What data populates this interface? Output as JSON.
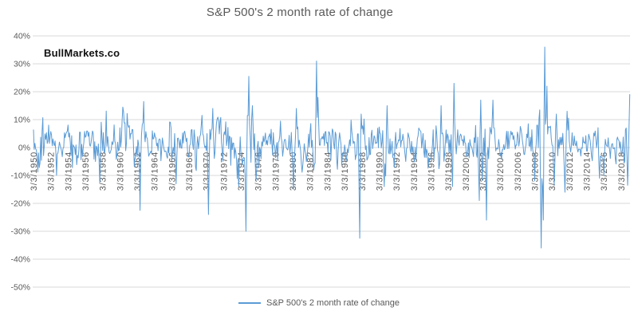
{
  "page": {
    "background": "#ffffff"
  },
  "watermark": {
    "text": "BullMarkets.co"
  },
  "chart_data": {
    "type": "line",
    "title": "S&P 500's 2 month rate of change",
    "xlabel": "",
    "ylabel": "",
    "grid": "horizontal",
    "legend": {
      "position": "bottom",
      "label": "S&P 500's 2 month rate of change"
    },
    "colors": {
      "series": "#5B9BD5",
      "gridline": "#D9D9D9",
      "text": "#595959",
      "title": "#595959",
      "watermark": "#111111"
    },
    "ylim": [
      -50,
      40
    ],
    "y_ticks": [
      {
        "v": 40,
        "label": "40%"
      },
      {
        "v": 30,
        "label": "30%"
      },
      {
        "v": 20,
        "label": "20%"
      },
      {
        "v": 10,
        "label": "10%"
      },
      {
        "v": 0,
        "label": "0%"
      },
      {
        "v": -10,
        "label": "-10%"
      },
      {
        "v": -20,
        "label": "-20%"
      },
      {
        "v": -30,
        "label": "-30%"
      },
      {
        "v": -40,
        "label": "-40%"
      },
      {
        "v": -50,
        "label": "-50%"
      }
    ],
    "x_range": [
      1950.17,
      2019.2
    ],
    "x_ticks": [
      {
        "t": 1950.17,
        "label": "3/3/1950"
      },
      {
        "t": 1952.17,
        "label": "3/3/1952"
      },
      {
        "t": 1954.17,
        "label": "3/3/1954"
      },
      {
        "t": 1956.17,
        "label": "3/3/1956"
      },
      {
        "t": 1958.17,
        "label": "3/3/1958"
      },
      {
        "t": 1960.17,
        "label": "3/3/1960"
      },
      {
        "t": 1962.17,
        "label": "3/3/1962"
      },
      {
        "t": 1964.17,
        "label": "3/3/1964"
      },
      {
        "t": 1966.17,
        "label": "3/3/1966"
      },
      {
        "t": 1968.17,
        "label": "3/3/1968"
      },
      {
        "t": 1970.17,
        "label": "3/3/1970"
      },
      {
        "t": 1972.17,
        "label": "3/3/1972"
      },
      {
        "t": 1974.17,
        "label": "3/3/1974"
      },
      {
        "t": 1976.17,
        "label": "3/3/1976"
      },
      {
        "t": 1978.17,
        "label": "3/3/1978"
      },
      {
        "t": 1980.17,
        "label": "3/3/1980"
      },
      {
        "t": 1982.17,
        "label": "3/3/1982"
      },
      {
        "t": 1984.17,
        "label": "3/3/1984"
      },
      {
        "t": 1986.17,
        "label": "3/3/1986"
      },
      {
        "t": 1988.17,
        "label": "3/3/1988"
      },
      {
        "t": 1990.17,
        "label": "3/3/1990"
      },
      {
        "t": 1992.17,
        "label": "3/3/1992"
      },
      {
        "t": 1994.17,
        "label": "3/3/1994"
      },
      {
        "t": 1996.17,
        "label": "3/3/1996"
      },
      {
        "t": 1998.17,
        "label": "3/3/1998"
      },
      {
        "t": 2000.17,
        "label": "3/3/2000"
      },
      {
        "t": 2002.17,
        "label": "3/3/2002"
      },
      {
        "t": 2004.17,
        "label": "3/3/2004"
      },
      {
        "t": 2006.17,
        "label": "3/3/2006"
      },
      {
        "t": 2008.17,
        "label": "3/3/2008"
      },
      {
        "t": 2010.17,
        "label": "3/3/2010"
      },
      {
        "t": 2012.17,
        "label": "3/3/2012"
      },
      {
        "t": 2014.17,
        "label": "3/3/2014"
      },
      {
        "t": 2016.17,
        "label": "3/3/2016"
      },
      {
        "t": 2018.17,
        "label": "3/3/2018"
      }
    ],
    "series": {
      "name": "S&P 500's 2 month rate of change",
      "unit": "percent",
      "points_per_year": 12,
      "typical_range": [
        -12,
        15
      ],
      "gen": {
        "seed": 42,
        "amp": 7.5,
        "drift": 0.9,
        "persist": 0.45,
        "tail_prob": 0.07,
        "clamp": [
          -16.5,
          17.5
        ],
        "vol_windows": [
          [
            1950.0,
            1951.6,
            1.15
          ],
          [
            1952.3,
            1957.4,
            0.8
          ],
          [
            1963.3,
            1965.9,
            0.7
          ],
          [
            1967.3,
            1969.3,
            0.85
          ],
          [
            1973.4,
            1975.6,
            1.3
          ],
          [
            1976.5,
            1979.6,
            0.78
          ],
          [
            1984.5,
            1987.3,
            0.9
          ],
          [
            1992.3,
            1995.6,
            0.6
          ],
          [
            1997.0,
            1999.2,
            1.15
          ],
          [
            1999.6,
            2003.3,
            1.2
          ],
          [
            2003.8,
            2007.3,
            0.62
          ],
          [
            2007.7,
            2010.0,
            1.45
          ],
          [
            2010.2,
            2011.9,
            1.1
          ],
          [
            2012.3,
            2015.3,
            0.6
          ],
          [
            2016.4,
            2018.5,
            0.55
          ]
        ]
      },
      "key_events": [
        {
          "t": 1957.8,
          "v": -12.5
        },
        {
          "t": 1962.5,
          "v": -22.5
        },
        {
          "t": 1962.95,
          "v": 16.5
        },
        {
          "t": 1966.7,
          "v": -13.0
        },
        {
          "t": 1970.45,
          "v": -24.0
        },
        {
          "t": 1970.9,
          "v": 14.0
        },
        {
          "t": 1973.95,
          "v": -14.0
        },
        {
          "t": 1974.78,
          "v": -30.0
        },
        {
          "t": 1975.12,
          "v": 25.5
        },
        {
          "t": 1975.5,
          "v": 15.0
        },
        {
          "t": 1980.28,
          "v": -15.0
        },
        {
          "t": 1980.6,
          "v": 14.0
        },
        {
          "t": 1982.95,
          "v": 31.0
        },
        {
          "t": 1983.1,
          "v": 18.0
        },
        {
          "t": 1987.9,
          "v": -32.5
        },
        {
          "t": 1988.1,
          "v": 12.0
        },
        {
          "t": 1990.75,
          "v": -14.0
        },
        {
          "t": 1991.1,
          "v": 15.0
        },
        {
          "t": 1997.3,
          "v": 15.0
        },
        {
          "t": 1998.7,
          "v": -14.0
        },
        {
          "t": 1998.85,
          "v": 23.0
        },
        {
          "t": 2001.75,
          "v": -19.0
        },
        {
          "t": 2001.95,
          "v": 17.0
        },
        {
          "t": 2002.6,
          "v": -26.0
        },
        {
          "t": 2003.35,
          "v": 17.0
        },
        {
          "t": 2008.15,
          "v": -12.0
        },
        {
          "t": 2008.9,
          "v": -36.0
        },
        {
          "t": 2009.15,
          "v": -26.0
        },
        {
          "t": 2009.35,
          "v": 36.0
        },
        {
          "t": 2009.6,
          "v": 22.0
        },
        {
          "t": 2010.45,
          "v": -13.5
        },
        {
          "t": 2010.7,
          "v": 12.0
        },
        {
          "t": 2011.7,
          "v": -16.0
        },
        {
          "t": 2011.95,
          "v": 13.0
        },
        {
          "t": 2015.7,
          "v": -11.0
        },
        {
          "t": 2016.2,
          "v": -10.0
        },
        {
          "t": 2018.95,
          "v": -13.5
        },
        {
          "t": 2019.2,
          "v": 19.0
        }
      ]
    }
  }
}
